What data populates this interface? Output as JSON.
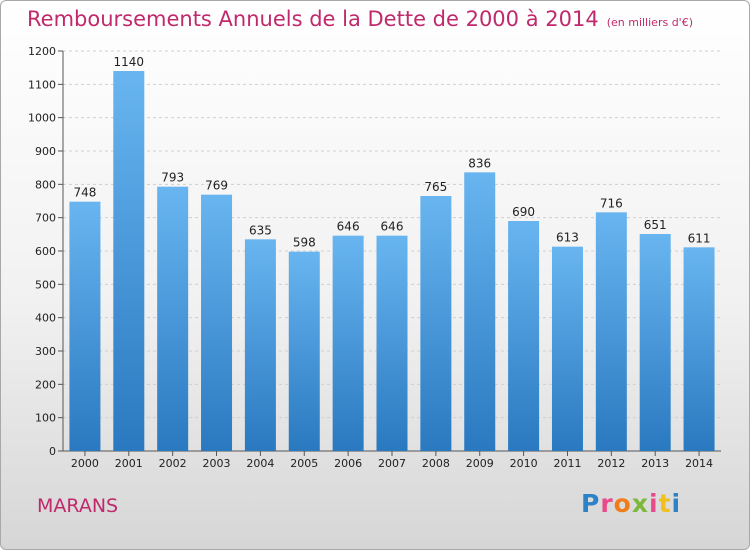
{
  "header": {
    "title": "Remboursements Annuels de la Dette de 2000 à 2014",
    "unit": "(en milliers d'€)"
  },
  "footer": {
    "city": "MARANS",
    "logo": "Proxiti"
  },
  "colors": {
    "title": "#c0296b",
    "bar_top": "#68b5f0",
    "bar_bottom": "#2a79c0",
    "grid": "#d0d0d0",
    "logo_letters": [
      "#2b82c6",
      "#e94a8a",
      "#f07d1a",
      "#7cb83a",
      "#e94a8a",
      "#f2c01e",
      "#2b82c6"
    ]
  },
  "chart_data": {
    "type": "bar",
    "title": "Remboursements Annuels de la Dette de 2000 à 2014",
    "categories": [
      "2000",
      "2001",
      "2002",
      "2003",
      "2004",
      "2005",
      "2006",
      "2007",
      "2008",
      "2009",
      "2010",
      "2011",
      "2012",
      "2013",
      "2014"
    ],
    "values": [
      748,
      1140,
      793,
      769,
      635,
      598,
      646,
      646,
      765,
      836,
      690,
      613,
      716,
      651,
      611
    ],
    "ylim": [
      0,
      1200
    ],
    "yticks": [
      0,
      100,
      200,
      300,
      400,
      500,
      600,
      700,
      800,
      900,
      1000,
      1100,
      1200
    ],
    "grid": true,
    "xlabel": "",
    "ylabel": ""
  }
}
